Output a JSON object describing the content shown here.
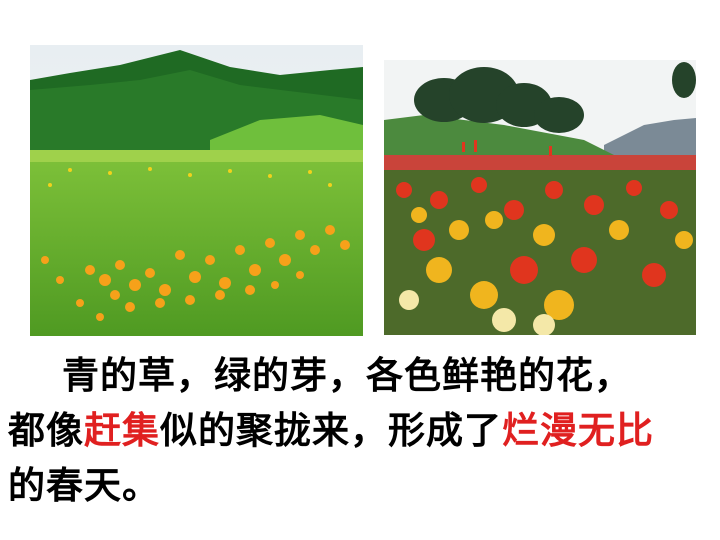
{
  "images": {
    "left": {
      "name": "meadow-photo"
    },
    "right": {
      "name": "flower-field-photo"
    }
  },
  "passage": {
    "line1": "青的草，绿的芽，各色鲜艳的花，",
    "line2_a": "都像",
    "line2_b": "赶集",
    "line2_c": "似的聚拢来，形成了",
    "line2_d": "烂漫无比",
    "line3": "的春天。"
  },
  "colors": {
    "text": "#000000",
    "highlight": "#e02020"
  }
}
